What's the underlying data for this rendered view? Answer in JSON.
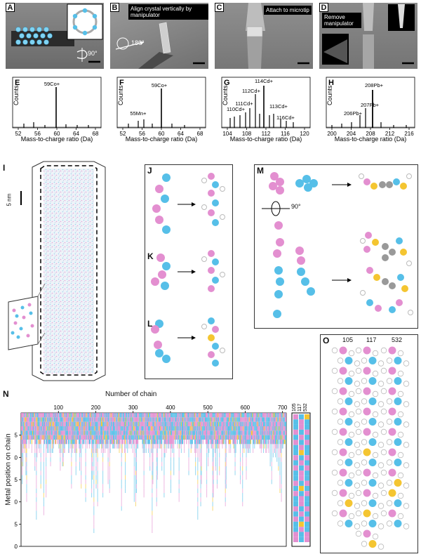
{
  "panels": {
    "A": "A",
    "B": "B",
    "C": "C",
    "D": "D",
    "E": "E",
    "F": "F",
    "G": "G",
    "H": "H",
    "I": "I",
    "J": "J",
    "K": "K",
    "L": "L",
    "M": "M",
    "N": "N",
    "O": "O"
  },
  "sem": {
    "a_rotation": "90°",
    "b_caption": "Align crystal vertically by manipulator",
    "b_rotation": "180°",
    "c_caption": "Attach to microtip",
    "d_caption": "Remove manipulator"
  },
  "spectra": {
    "ylabel": "Counts",
    "xlabel": "Mass-to-charge ratio (Da)",
    "E": {
      "ticks": [
        "52",
        "56",
        "60",
        "64",
        "68"
      ],
      "peaks": [
        "59Co+"
      ]
    },
    "F": {
      "ticks": [
        "52",
        "56",
        "60",
        "64",
        "68"
      ],
      "peaks": [
        "55Mn+",
        "59Co+"
      ]
    },
    "G": {
      "ticks": [
        "104",
        "108",
        "112",
        "116",
        "120"
      ],
      "peaks": [
        "110Cd+",
        "111Cd+",
        "112Cd+",
        "113Cd+",
        "114Cd+",
        "116Cd+"
      ]
    },
    "H": {
      "ticks": [
        "200",
        "204",
        "208",
        "212",
        "216"
      ],
      "peaks": [
        "206Pb+",
        "207Pb+",
        "208Pb+"
      ]
    }
  },
  "reconstruction": {
    "scale_label": "5 nm"
  },
  "m_rotation": "90°",
  "chains_panel": {
    "title": "Number of chain",
    "xticks": [
      "100",
      "200",
      "300",
      "400",
      "500",
      "600",
      "700"
    ],
    "ylabel": "Metal position on chain",
    "yticks": [
      "5",
      "10",
      "15",
      "20",
      "25",
      "30"
    ],
    "selected": [
      "105",
      "117",
      "532"
    ]
  },
  "o_labels": [
    "105",
    "117",
    "532"
  ],
  "colors": {
    "pink": "#e38fd0",
    "cyan": "#56bfe8",
    "yellow": "#f4c531",
    "grey": "#999999"
  }
}
